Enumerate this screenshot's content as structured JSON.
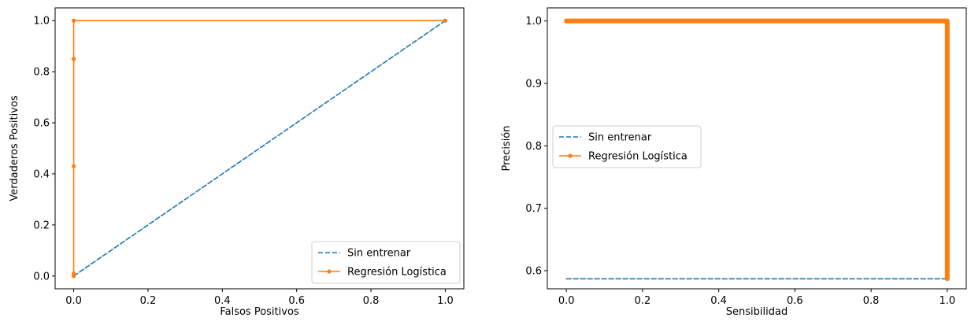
{
  "colors": {
    "baseline": "#1f77b4",
    "model": "#ff7f0e",
    "axis": "#000000",
    "background": "#ffffff"
  },
  "chart_data": [
    {
      "type": "line",
      "title": "",
      "xlabel": "Falsos Positivos",
      "ylabel": "Verdaderos Positivos",
      "xlim": [
        -0.05,
        1.05
      ],
      "ylim": [
        -0.05,
        1.05
      ],
      "xticks": [
        0.0,
        0.2,
        0.4,
        0.6,
        0.8,
        1.0
      ],
      "xtick_labels": [
        "0.0",
        "0.2",
        "0.4",
        "0.6",
        "0.8",
        "1.0"
      ],
      "yticks": [
        0.0,
        0.2,
        0.4,
        0.6,
        0.8,
        1.0
      ],
      "ytick_labels": [
        "0.0",
        "0.2",
        "0.4",
        "0.6",
        "0.8",
        "1.0"
      ],
      "grid": false,
      "legend_position": "lower-right",
      "series": [
        {
          "name": "Sin entrenar",
          "style": "dashed",
          "color": "#1f77b4",
          "markers": false,
          "x": [
            0,
            1
          ],
          "y": [
            0,
            1
          ]
        },
        {
          "name": "Regresión Logística",
          "style": "solid",
          "color": "#ff7f0e",
          "markers": true,
          "x": [
            0,
            0,
            0,
            0,
            0,
            1
          ],
          "y": [
            0,
            0.01,
            0.43,
            0.85,
            1.0,
            1.0
          ]
        }
      ]
    },
    {
      "type": "line",
      "title": "",
      "xlabel": "Sensibilidad",
      "ylabel": "Precisión",
      "xlim": [
        -0.05,
        1.05
      ],
      "ylim": [
        0.571,
        1.021
      ],
      "xticks": [
        0.0,
        0.2,
        0.4,
        0.6,
        0.8,
        1.0
      ],
      "xtick_labels": [
        "0.0",
        "0.2",
        "0.4",
        "0.6",
        "0.8",
        "1.0"
      ],
      "yticks": [
        0.6,
        0.7,
        0.8,
        0.9,
        1.0
      ],
      "ytick_labels": [
        "0.6",
        "0.7",
        "0.8",
        "0.9",
        "1.0"
      ],
      "grid": false,
      "legend_position": "center-left",
      "series": [
        {
          "name": "Sin entrenar",
          "style": "dashed",
          "color": "#1f77b4",
          "markers": false,
          "x": [
            0,
            1
          ],
          "y": [
            0.587,
            0.587
          ]
        },
        {
          "name": "Regresión Logística",
          "style": "solid",
          "color": "#ff7f0e",
          "markers": true,
          "dense": true,
          "x": [
            0,
            1,
            1
          ],
          "y": [
            1.0,
            1.0,
            0.587
          ]
        }
      ]
    }
  ]
}
